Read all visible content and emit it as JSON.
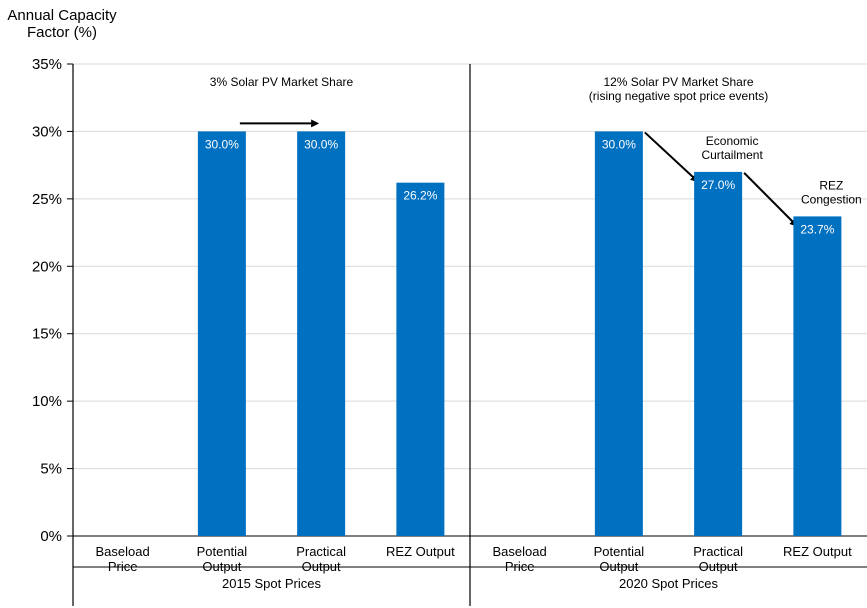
{
  "chart_data": {
    "type": "bar",
    "ylabel_lines": [
      "Annual Capacity",
      "Factor (%)"
    ],
    "ylim": [
      0,
      35
    ],
    "ytick_step": 5,
    "ytick_suffix": "%",
    "grid": true,
    "bar_color": "#0070C0",
    "groups": [
      {
        "label": "2015 Spot Prices",
        "annotation_lines": [
          "3% Solar PV Market Share"
        ],
        "categories": [
          {
            "lines": [
              "Baseload",
              "Price"
            ],
            "value": null,
            "label": ""
          },
          {
            "lines": [
              "Potential",
              "Output"
            ],
            "value": 30.0,
            "label": "30.0%"
          },
          {
            "lines": [
              "Practical",
              "Output"
            ],
            "value": 30.0,
            "label": "30.0%"
          },
          {
            "lines": [
              "REZ Output"
            ],
            "value": 26.2,
            "label": "26.2%"
          }
        ],
        "arrows": [
          {
            "from_category": 1,
            "to_category": 2,
            "lines": []
          }
        ]
      },
      {
        "label": "2020 Spot Prices",
        "annotation_lines": [
          "12% Solar PV Market Share",
          "(rising negative spot price events)"
        ],
        "categories": [
          {
            "lines": [
              "Baseload",
              "Price"
            ],
            "value": null,
            "label": ""
          },
          {
            "lines": [
              "Potential",
              "Output"
            ],
            "value": 30.0,
            "label": "30.0%"
          },
          {
            "lines": [
              "Practical",
              "Output"
            ],
            "value": 27.0,
            "label": "27.0%"
          },
          {
            "lines": [
              "REZ Output"
            ],
            "value": 23.7,
            "label": "23.7%"
          }
        ],
        "arrows": [
          {
            "from_category": 1,
            "to_category": 2,
            "lines": [
              "Economic",
              "Curtailment"
            ]
          },
          {
            "from_category": 2,
            "to_category": 3,
            "lines": [
              "REZ",
              "Congestion"
            ]
          }
        ]
      }
    ]
  }
}
